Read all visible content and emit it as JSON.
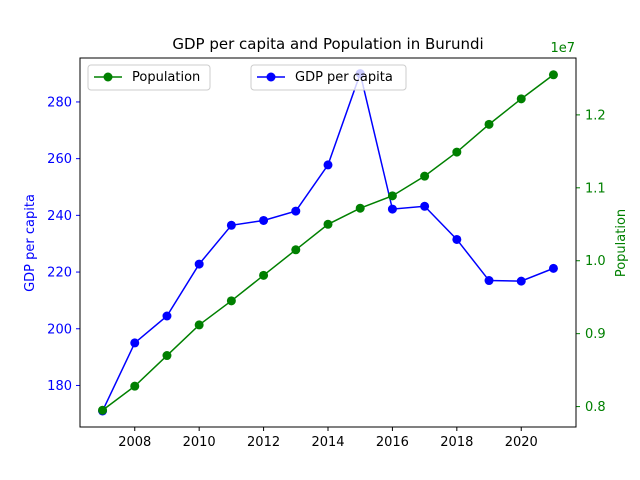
{
  "chart_data": {
    "type": "line",
    "title": "GDP per capita and Population in Burundi",
    "xlabel": "",
    "x": [
      2007,
      2008,
      2009,
      2010,
      2011,
      2012,
      2013,
      2014,
      2015,
      2016,
      2017,
      2018,
      2019,
      2020,
      2021
    ],
    "xlim": [
      2006.3,
      2021.7
    ],
    "xticks": [
      2008,
      2010,
      2012,
      2014,
      2016,
      2018,
      2020
    ],
    "x_tick_labels": [
      "2008",
      "2010",
      "2012",
      "2014",
      "2016",
      "2018",
      "2020"
    ],
    "grid": false,
    "series": [
      {
        "name": "GDP per capita",
        "axis": "left",
        "color": "#0000ff",
        "marker": "circle",
        "values": [
          171,
          195,
          204.5,
          222.8,
          236.5,
          238.2,
          241.5,
          257.8,
          290,
          242.2,
          243.2,
          231.5,
          217,
          216.8,
          221.3
        ]
      },
      {
        "name": "Population",
        "axis": "right",
        "color": "#008000",
        "marker": "circle",
        "values": [
          7950000,
          8280000,
          8700000,
          9120000,
          9450000,
          9800000,
          10150000,
          10500000,
          10720000,
          10890000,
          11160000,
          11490000,
          11870000,
          12220000,
          12550000
        ]
      }
    ],
    "y_left": {
      "label": "GDP per capita",
      "color": "#0000ff",
      "ylim": [
        165.35,
        295.5
      ],
      "ticks": [
        180,
        200,
        220,
        240,
        260,
        280
      ],
      "tick_labels": [
        "180",
        "200",
        "220",
        "240",
        "260",
        "280"
      ]
    },
    "y_right": {
      "label": "Population",
      "color": "#008000",
      "ylim": [
        7720000,
        12780000
      ],
      "ticks": [
        8000000,
        9000000,
        10000000,
        11000000,
        12000000
      ],
      "tick_labels": [
        "0.8",
        "0.9",
        "1.0",
        "1.1",
        "1.2"
      ],
      "offset_text": "1e7"
    },
    "legends": [
      {
        "series": "Population",
        "placement": "upper-left"
      },
      {
        "series": "GDP per capita",
        "placement": "upper-center"
      }
    ]
  }
}
